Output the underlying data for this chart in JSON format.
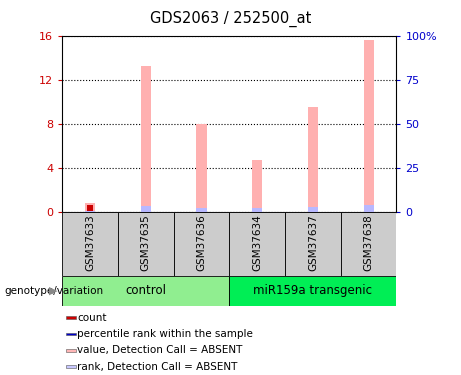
{
  "title": "GDS2063 / 252500_at",
  "samples": [
    "GSM37633",
    "GSM37635",
    "GSM37636",
    "GSM37634",
    "GSM37637",
    "GSM37638"
  ],
  "pink_bar_values": [
    0.8,
    13.2,
    8.0,
    4.7,
    9.5,
    15.6
  ],
  "blue_bar_values": [
    0.5,
    3.4,
    2.1,
    2.0,
    2.9,
    3.7
  ],
  "red_bar_values": [
    0.65,
    0.0,
    0.0,
    0.0,
    0.0,
    0.0
  ],
  "ylim_left": [
    0,
    16
  ],
  "ylim_right": [
    0,
    100
  ],
  "yticks_left": [
    0,
    4,
    8,
    12,
    16
  ],
  "yticks_right": [
    0,
    25,
    50,
    75,
    100
  ],
  "yticklabels_left": [
    "0",
    "4",
    "8",
    "12",
    "16"
  ],
  "yticklabels_right": [
    "0",
    "25",
    "50",
    "75",
    "100%"
  ],
  "group_labels": [
    "control",
    "miR159a transgenic"
  ],
  "group_starts": [
    0,
    3
  ],
  "group_ends": [
    3,
    6
  ],
  "group_colors": [
    "#90EE90",
    "#00EE55"
  ],
  "group_row_label": "genotype/variation",
  "legend_items": [
    {
      "label": "count",
      "color": "#CC0000"
    },
    {
      "label": "percentile rank within the sample",
      "color": "#0000CC"
    },
    {
      "label": "value, Detection Call = ABSENT",
      "color": "#FFB6B6"
    },
    {
      "label": "rank, Detection Call = ABSENT",
      "color": "#C8C8FF"
    }
  ],
  "pink_color": "#FFB0B0",
  "blue_color": "#B8B8FF",
  "red_color": "#CC0000",
  "left_axis_color": "#CC0000",
  "right_axis_color": "#0000CC",
  "sample_row_color": "#CCCCCC",
  "bar_width": 0.18
}
